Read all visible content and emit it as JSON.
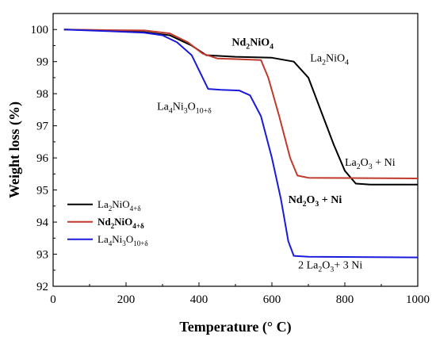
{
  "chart_data": {
    "type": "line",
    "xlabel": "Temperature (° C)",
    "ylabel": "Weight loss (%)",
    "xlim": [
      0,
      1000
    ],
    "ylim": [
      92,
      100.5
    ],
    "xticks": [
      0,
      200,
      400,
      600,
      800,
      1000
    ],
    "yticks": [
      92,
      93,
      94,
      95,
      96,
      97,
      98,
      99,
      100
    ],
    "grid": false,
    "legend_position": "bottom-left",
    "series": [
      {
        "name": {
          "base": "La",
          "s1": "2",
          "mid": "NiO",
          "s2": "4+δ",
          "tail": ""
        },
        "color": "#000000",
        "bold": false,
        "points": [
          [
            30,
            100
          ],
          [
            150,
            99.97
          ],
          [
            250,
            99.92
          ],
          [
            320,
            99.82
          ],
          [
            380,
            99.5
          ],
          [
            420,
            99.2
          ],
          [
            500,
            99.15
          ],
          [
            600,
            99.12
          ],
          [
            660,
            99.0
          ],
          [
            700,
            98.5
          ],
          [
            740,
            97.3
          ],
          [
            770,
            96.4
          ],
          [
            800,
            95.6
          ],
          [
            830,
            95.2
          ],
          [
            870,
            95.17
          ],
          [
            1000,
            95.17
          ]
        ]
      },
      {
        "name": {
          "base": "Nd",
          "s1": "2",
          "mid": "NiO",
          "s2": "4+δ",
          "tail": ""
        },
        "color": "#c0392b",
        "bold": true,
        "points": [
          [
            30,
            100
          ],
          [
            150,
            99.98
          ],
          [
            250,
            99.97
          ],
          [
            320,
            99.88
          ],
          [
            370,
            99.6
          ],
          [
            410,
            99.25
          ],
          [
            450,
            99.1
          ],
          [
            500,
            99.08
          ],
          [
            570,
            99.05
          ],
          [
            590,
            98.5
          ],
          [
            620,
            97.3
          ],
          [
            650,
            96.0
          ],
          [
            670,
            95.45
          ],
          [
            700,
            95.38
          ],
          [
            1000,
            95.36
          ]
        ]
      },
      {
        "name": {
          "base": "La",
          "s1": "4",
          "mid": "Ni",
          "s2": "3",
          "tail": "O",
          "s3": "10+δ"
        },
        "color": "#1a1adc",
        "bold": false,
        "points": [
          [
            30,
            100
          ],
          [
            150,
            99.95
          ],
          [
            250,
            99.9
          ],
          [
            300,
            99.82
          ],
          [
            340,
            99.6
          ],
          [
            380,
            99.2
          ],
          [
            410,
            98.5
          ],
          [
            425,
            98.15
          ],
          [
            460,
            98.12
          ],
          [
            510,
            98.1
          ],
          [
            540,
            97.95
          ],
          [
            570,
            97.3
          ],
          [
            600,
            96.0
          ],
          [
            625,
            94.7
          ],
          [
            645,
            93.4
          ],
          [
            660,
            92.95
          ],
          [
            700,
            92.92
          ],
          [
            1000,
            92.9
          ]
        ]
      }
    ],
    "annotations": [
      {
        "base": "Nd",
        "s1": "2",
        "mid": "NiO",
        "s2": "4",
        "tail": "",
        "bold": true,
        "x": 490,
        "y": 99.5
      },
      {
        "base": "La",
        "s1": "2",
        "mid": "NiO",
        "s2": "4",
        "tail": "",
        "bold": false,
        "x": 705,
        "y": 99.0
      },
      {
        "base": "La",
        "s1": "4",
        "mid": "Ni",
        "s2": "3",
        "tail": "O",
        "s3": "10+δ",
        "bold": false,
        "x": 285,
        "y": 97.5
      },
      {
        "base": "La",
        "s1": "2",
        "mid": "O",
        "s2": "3",
        "tail": " + Ni",
        "bold": false,
        "x": 800,
        "y": 95.75
      },
      {
        "base": "Nd",
        "s1": "2",
        "mid": "O",
        "s2": "3",
        "tail": " + Ni",
        "bold": true,
        "x": 645,
        "y": 94.6
      },
      {
        "base": "2 La",
        "s1": "2",
        "mid": "O",
        "s2": "3",
        "tail": "+ 3 Ni",
        "bold": false,
        "x": 672,
        "y": 92.55
      }
    ]
  }
}
